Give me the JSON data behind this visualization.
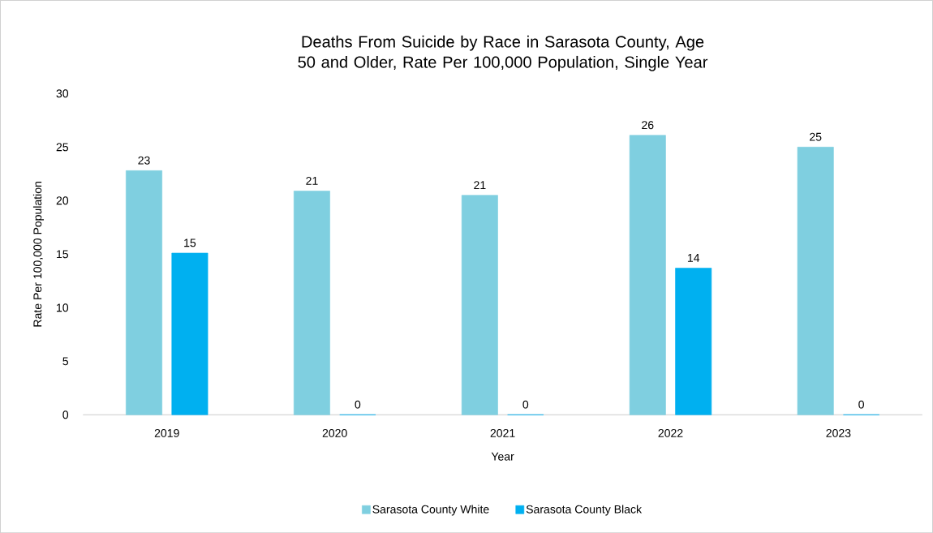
{
  "chart_data": {
    "type": "bar",
    "title": "Deaths From Suicide by Race in Sarasota County, Age 50 and Older, Rate Per 100,000 Population, Single Year",
    "xlabel": "Year",
    "ylabel": "Rate Per 100,000 Population",
    "categories": [
      "2019",
      "2020",
      "2021",
      "2022",
      "2023"
    ],
    "series": [
      {
        "name": "Sarasota County White",
        "color": "#7fcfe0",
        "values": [
          22.8,
          20.9,
          20.5,
          26.1,
          25.0
        ],
        "value_labels": [
          "23",
          "21",
          "21",
          "26",
          "25"
        ]
      },
      {
        "name": "Sarasota County Black",
        "color": "#00b0f0",
        "values": [
          15.1,
          0,
          0,
          13.7,
          0
        ],
        "value_labels": [
          "15",
          "0",
          "0",
          "14",
          "0"
        ]
      }
    ],
    "ylim": [
      0,
      30
    ],
    "yticks": [
      0,
      5,
      10,
      15,
      20,
      25,
      30
    ],
    "grid": false,
    "legend": "bottom"
  }
}
